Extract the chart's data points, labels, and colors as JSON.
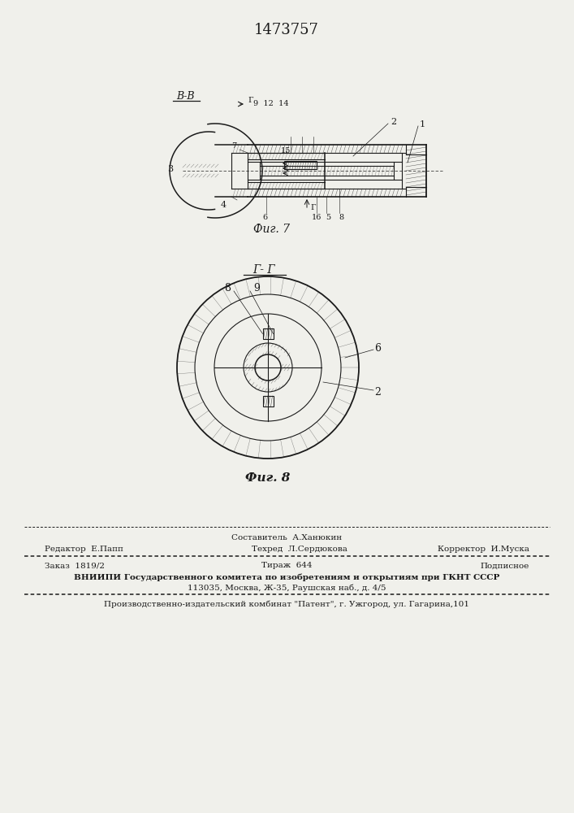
{
  "patent_number": "1473757",
  "bg_color": "#f0f0eb",
  "fig7_label": "В-В",
  "fig7_caption": "Фиг. 7",
  "fig8_section_label": "Г- Г",
  "fig8_caption": "Фиг. 8",
  "footer_line1_left": "Редактор  Е.Папп",
  "footer_line1_center": "Составитель  А.Ханюкин",
  "footer_line2_center": "Техред  Л.Сердюкова",
  "footer_line2_right": "Корректор  И.Муска",
  "footer_order": "Заказ  1819/2",
  "footer_tirazh": "Тираж  644",
  "footer_podpisnoe": "Подписное",
  "footer_vnipi": "ВНИИПИ Государственного комитета по изобретениям и открытиям при ГКНТ СССР",
  "footer_address": "113035, Москва, Ж-35, Раушская наб., д. 4/5",
  "footer_kombinat": "Производственно-издательский комбинат \"Патент\", г. Ужгород, ул. Гагарина,101",
  "line_color": "#1a1a1a"
}
